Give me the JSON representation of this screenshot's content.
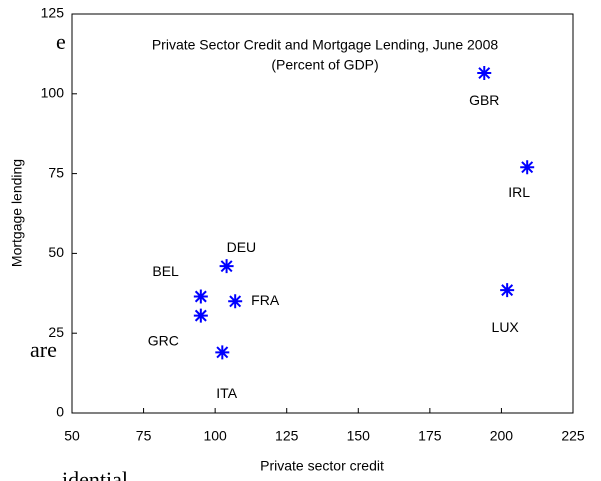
{
  "chart_data": {
    "type": "scatter",
    "title": "Private Sector Credit and Mortgage Lending, June 2008",
    "subtitle": "(Percent of GDP)",
    "x_label": "Private sector credit",
    "y_label": "Mortgage lending",
    "point_labels": [
      "GBR",
      "IRL",
      "LUX",
      "DEU",
      "FRA",
      "BEL",
      "GRC",
      "ITA"
    ],
    "x": [
      194,
      209,
      202,
      104,
      107,
      95,
      95,
      102.5
    ],
    "values": [
      106.5,
      77,
      38.5,
      46,
      35,
      36.5,
      30.5,
      19
    ],
    "color": "#0000ff",
    "xlim": [
      50,
      225
    ],
    "xticks": [
      50,
      75,
      100,
      125,
      150,
      175,
      200,
      225
    ],
    "ylim": [
      0,
      125
    ],
    "yticks": [
      0,
      25,
      50,
      75,
      100,
      125
    ],
    "grid": false
  },
  "page_text": [
    "e",
    "are",
    "idential"
  ]
}
